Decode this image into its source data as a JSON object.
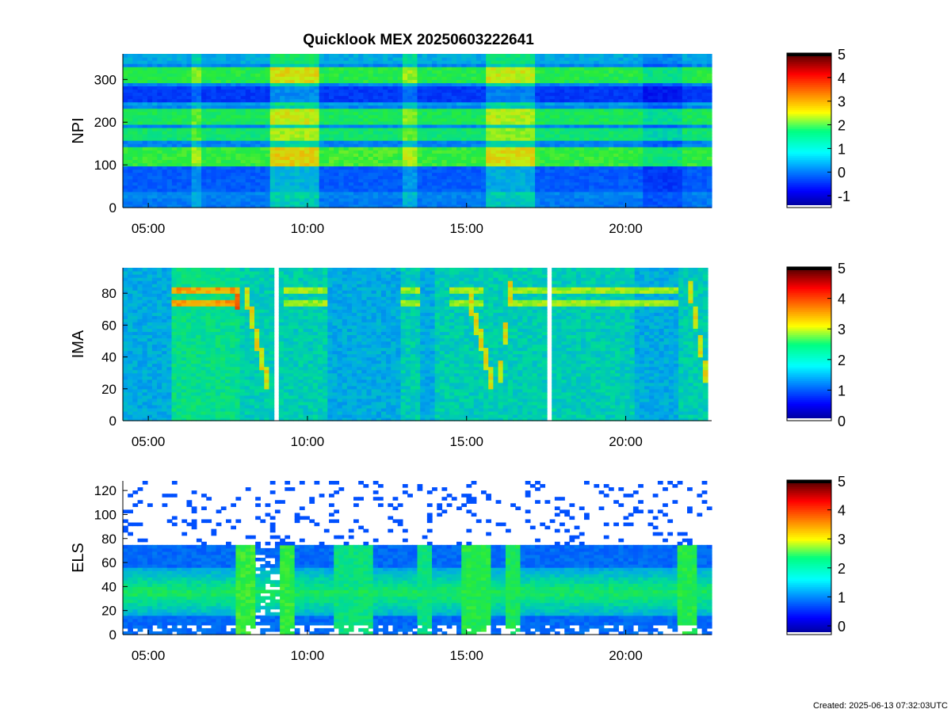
{
  "title": "Quicklook MEX 20250603222641",
  "created": "Created: 2025-06-13 07:32:03UTC",
  "chart_data": [
    {
      "type": "heatmap",
      "ylabel": "NPI",
      "x_ticks": [
        "05:00",
        "10:00",
        "15:00",
        "20:00"
      ],
      "x_tick_hours": [
        5,
        10,
        15,
        20
      ],
      "x_range_hours": [
        4.2,
        22.7
      ],
      "ylim": [
        0,
        360
      ],
      "y_ticks": [
        0,
        100,
        200,
        300
      ],
      "colorbar": {
        "range": [
          -1.5,
          5
        ],
        "ticks": [
          -1,
          0,
          1,
          2,
          3,
          4,
          5
        ]
      },
      "features": [
        "horizontal bands of enhanced counts near NPI 100-140, 160-230 and 290-330",
        "broad enhancement around 09:00-10:30 and 15:30-17:00"
      ]
    },
    {
      "type": "heatmap",
      "ylabel": "IMA",
      "x_ticks": [
        "05:00",
        "10:00",
        "15:00",
        "20:00"
      ],
      "x_tick_hours": [
        5,
        10,
        15,
        20
      ],
      "x_range_hours": [
        4.2,
        22.7
      ],
      "ylim": [
        0,
        96
      ],
      "y_ticks": [
        0,
        20,
        40,
        60,
        80
      ],
      "colorbar": {
        "range": [
          0,
          5
        ],
        "ticks": [
          0,
          1,
          2,
          3,
          4,
          5
        ]
      },
      "data_gaps_hours": [
        9.0,
        17.6
      ],
      "features": [
        "two bright lines near IMA 74 and 82",
        "descending dispersion to ~20 near 08:50, 15:50 and 22:40"
      ]
    },
    {
      "type": "heatmap",
      "ylabel": "ELS",
      "x_ticks": [
        "05:00",
        "10:00",
        "15:00",
        "20:00"
      ],
      "x_tick_hours": [
        5,
        10,
        15,
        20
      ],
      "x_range_hours": [
        4.2,
        22.7
      ],
      "ylim": [
        0,
        128
      ],
      "y_ticks": [
        0,
        20,
        40,
        60,
        80,
        100,
        120
      ],
      "colorbar": {
        "range": [
          -0.3,
          5
        ],
        "ticks": [
          0,
          1,
          2,
          3,
          4,
          5
        ]
      },
      "features": [
        "main electron band centred near ELS 35",
        "sparse noise above ELS 80",
        "broad enhancements around 07:40-09:40, 14:50-16:30 and 21:40"
      ]
    }
  ]
}
